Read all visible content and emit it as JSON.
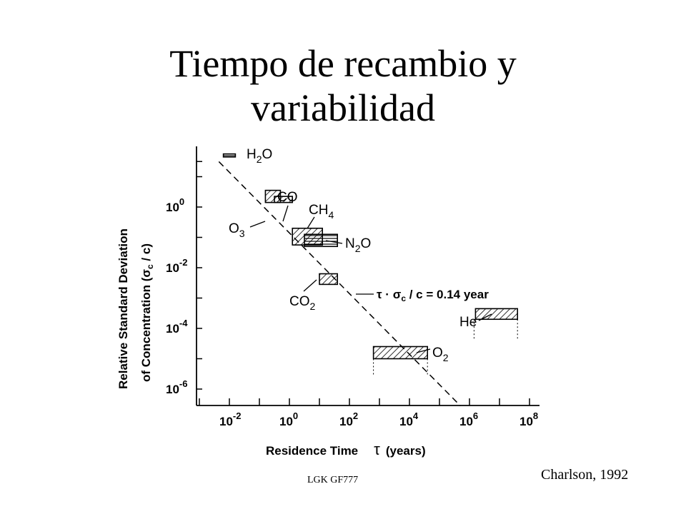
{
  "slide": {
    "title_line1": "Tiempo de recambio y",
    "title_line2": "variabilidad",
    "source": "Charlson, 1992",
    "footer": "LGK GF777"
  },
  "chart_data": {
    "type": "scatter",
    "xlabel": "Residence Time",
    "xlabel_symbol": "τ",
    "xlabel_unit": "(years)",
    "ylabel_line1": "Relative Standard Deviation",
    "ylabel_line2": "of Concentration (σ",
    "ylabel_sub": "c",
    "ylabel_tail": " / c)",
    "x_scale": "log",
    "y_scale": "log",
    "xlim_log10": [
      -3.5,
      8
    ],
    "ylim_log10": [
      -7,
      2
    ],
    "x_ticks": [
      {
        "exp": -2,
        "base": "10",
        "sup": "-2"
      },
      {
        "exp": 0,
        "base": "10",
        "sup": "0"
      },
      {
        "exp": 2,
        "base": "10",
        "sup": "2"
      },
      {
        "exp": 4,
        "base": "10",
        "sup": "4"
      },
      {
        "exp": 6,
        "base": "10",
        "sup": "6"
      },
      {
        "exp": 8,
        "base": "10",
        "sup": "8"
      }
    ],
    "y_ticks": [
      {
        "exp": 0,
        "base": "10",
        "sup": "0"
      },
      {
        "exp": -2,
        "base": "10",
        "sup": "-2"
      },
      {
        "exp": -4,
        "base": "10",
        "sup": "-4"
      },
      {
        "exp": -6,
        "base": "10",
        "sup": "-6"
      }
    ],
    "trend_line": {
      "label_prefix": "τ · σ",
      "label_sub": "c",
      "label_suffix": " / c = 0.14 year",
      "product_years": 0.14
    },
    "species": [
      {
        "name": "H",
        "sub": "2",
        "tail": "O",
        "log_tau": [
          -2.2,
          -1.8
        ],
        "log_sd": [
          1.65,
          1.75
        ]
      },
      {
        "name": "CO",
        "sub": "",
        "tail": "",
        "log_tau": [
          -0.5,
          0.1
        ],
        "log_sd": [
          0.15,
          0.35
        ]
      },
      {
        "name": "O",
        "sub": "3",
        "tail": "",
        "log_tau": [
          -0.8,
          -0.3
        ],
        "log_sd": [
          0.15,
          0.55
        ]
      },
      {
        "name": "CH",
        "sub": "4",
        "tail": "",
        "log_tau": [
          0.1,
          1.1
        ],
        "log_sd": [
          -1.25,
          -0.7
        ]
      },
      {
        "name": "N",
        "sub": "2",
        "tail": "O",
        "log_tau": [
          0.5,
          1.6
        ],
        "log_sd": [
          -1.3,
          -0.9
        ]
      },
      {
        "name": "CO",
        "sub": "2",
        "tail": "",
        "log_tau": [
          1.0,
          1.6
        ],
        "log_sd": [
          -2.55,
          -2.2
        ]
      },
      {
        "name": "O",
        "sub": "2",
        "tail": "",
        "log_tau": [
          2.8,
          4.6
        ],
        "log_sd": [
          -5.0,
          -4.6
        ]
      },
      {
        "name": "He",
        "sub": "",
        "tail": "",
        "log_tau": [
          6.2,
          7.6
        ],
        "log_sd": [
          -3.7,
          -3.35
        ]
      }
    ]
  }
}
